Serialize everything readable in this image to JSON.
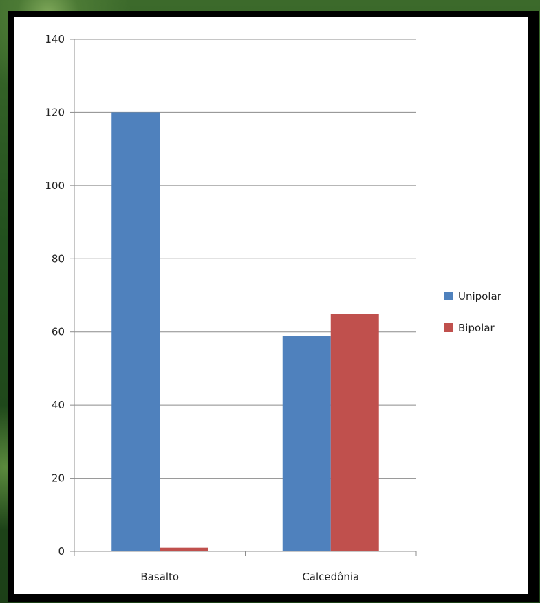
{
  "chart_data": {
    "type": "bar",
    "title": "",
    "xlabel": "",
    "ylabel": "",
    "categories": [
      "Basalto",
      "Calcedônia"
    ],
    "series": [
      {
        "name": "Unipolar",
        "values": [
          120,
          59
        ],
        "color": "#4f81bd"
      },
      {
        "name": "Bipolar",
        "values": [
          1,
          65
        ],
        "color": "#c0504d"
      }
    ],
    "ylim": [
      0,
      140
    ],
    "yticks": [
      0,
      20,
      40,
      60,
      80,
      100,
      120,
      140
    ],
    "grid": true,
    "legend_position": "right"
  }
}
